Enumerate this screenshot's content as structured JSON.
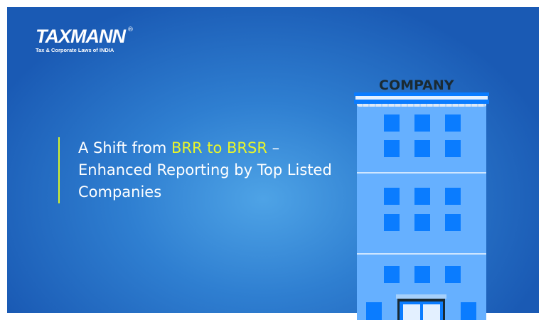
{
  "logo": {
    "brand": "TAXMANN",
    "registered": "®",
    "tagline": "Tax & Corporate Laws of INDIA"
  },
  "headline": {
    "part1": "A Shift from ",
    "highlight": "BRR to BRSR",
    "part2": " – Enhanced Reporting by Top Listed Companies"
  },
  "building": {
    "sign": "COMPANY"
  },
  "colors": {
    "background": "#2f7fd1",
    "highlight": "#e8f52a",
    "building": "#66b0ff",
    "window": "#0a7cff"
  }
}
